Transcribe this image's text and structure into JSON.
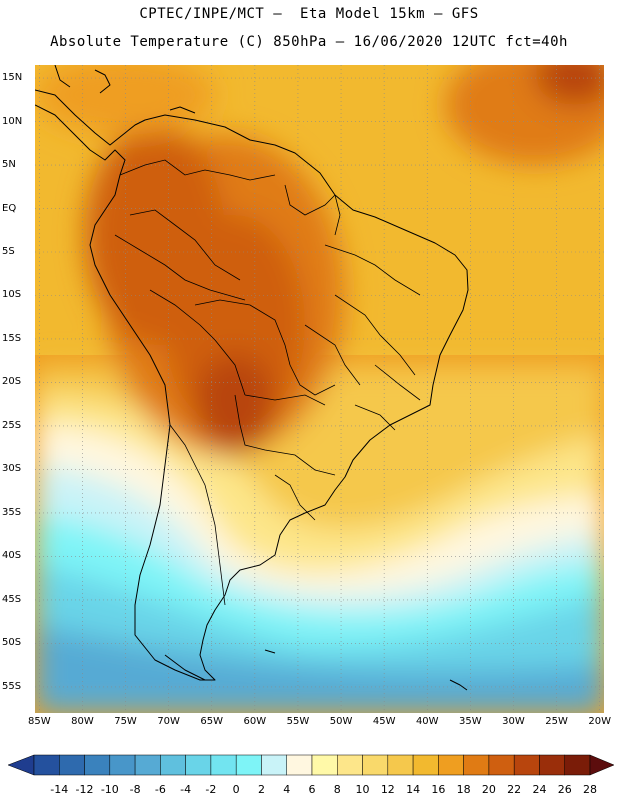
{
  "header": {
    "line1": "CPTEC/INPE/MCT –  Eta Model 15km – GFS",
    "line2": "Absolute Temperature (C) 850hPa – 16/06/2020 12UTC fct=40h"
  },
  "map": {
    "lat_labels": [
      "15N",
      "10N",
      "5N",
      "EQ",
      "5S",
      "10S",
      "15S",
      "20S",
      "25S",
      "30S",
      "35S",
      "40S",
      "45S",
      "50S",
      "55S"
    ],
    "lat_values": [
      15,
      10,
      5,
      0,
      -5,
      -10,
      -15,
      -20,
      -25,
      -30,
      -35,
      -40,
      -45,
      -50,
      -55
    ],
    "lon_labels": [
      "85W",
      "80W",
      "75W",
      "70W",
      "65W",
      "60W",
      "55W",
      "50W",
      "45W",
      "40W",
      "35W",
      "30W",
      "25W",
      "20W"
    ],
    "lon_values": [
      -85,
      -80,
      -75,
      -70,
      -65,
      -60,
      -55,
      -50,
      -45,
      -40,
      -35,
      -30,
      -25,
      -20
    ],
    "extent": {
      "lon_min": -85.5,
      "lon_max": -19.5,
      "lat_min": -58,
      "lat_max": 16.5
    }
  },
  "colorbar": {
    "labels": [
      "-14",
      "-12",
      "-10",
      "-8",
      "-6",
      "-4",
      "-2",
      "0",
      "2",
      "4",
      "6",
      "8",
      "10",
      "12",
      "14",
      "16",
      "18",
      "20",
      "22",
      "24",
      "26",
      "28"
    ],
    "colors": [
      "#1f3d8f",
      "#24519e",
      "#2e6aae",
      "#3a82bd",
      "#4896c9",
      "#56aad4",
      "#5fc0de",
      "#69d4e8",
      "#72e4f0",
      "#7ef4f7",
      "#c9f3f8",
      "#fff7e0",
      "#fff9a8",
      "#fde68a",
      "#f9d96b",
      "#f5c84c",
      "#f2b92f",
      "#ef9e20",
      "#e07b14",
      "#cf5f10",
      "#b8450d",
      "#9a2e0a",
      "#7a1c08",
      "#5c0d0d"
    ]
  }
}
